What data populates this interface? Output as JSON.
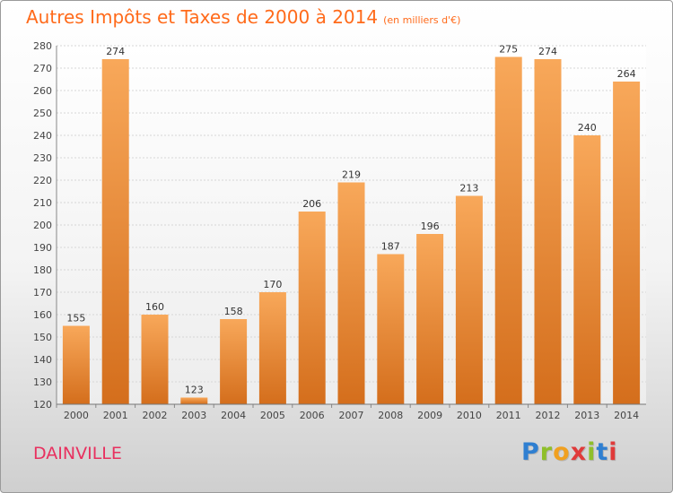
{
  "title": "Autres Impôts et Taxes de 2000 à 2014",
  "unit_label": "(en milliers d'€)",
  "commune": "DAINVILLE",
  "logo": {
    "letters": [
      "P",
      "r",
      "o",
      "x",
      "i",
      "t",
      "i"
    ],
    "colors": [
      "#2f7fd1",
      "#8fbf2a",
      "#f0a020",
      "#e03a3a",
      "#8fbf2a",
      "#2f7fd1",
      "#e03a3a"
    ]
  },
  "colors": {
    "title": "#ff6a1a",
    "bar_light": "#f8a85a",
    "bar_dark": "#d46e1c",
    "commune": "#e8305f"
  },
  "chart_data": {
    "type": "bar",
    "categories": [
      "2000",
      "2001",
      "2002",
      "2003",
      "2004",
      "2005",
      "2006",
      "2007",
      "2008",
      "2009",
      "2010",
      "2011",
      "2012",
      "2013",
      "2014"
    ],
    "values": [
      155,
      274,
      160,
      123,
      158,
      170,
      206,
      219,
      187,
      196,
      213,
      275,
      274,
      240,
      264
    ],
    "title": "Autres Impôts et Taxes de 2000 à 2014",
    "xlabel": "",
    "ylabel": "",
    "ylim": [
      120,
      280
    ],
    "yticks": [
      120,
      130,
      140,
      150,
      160,
      170,
      180,
      190,
      200,
      210,
      220,
      230,
      240,
      250,
      260,
      270,
      280
    ],
    "grid": true,
    "data_labels": true
  }
}
